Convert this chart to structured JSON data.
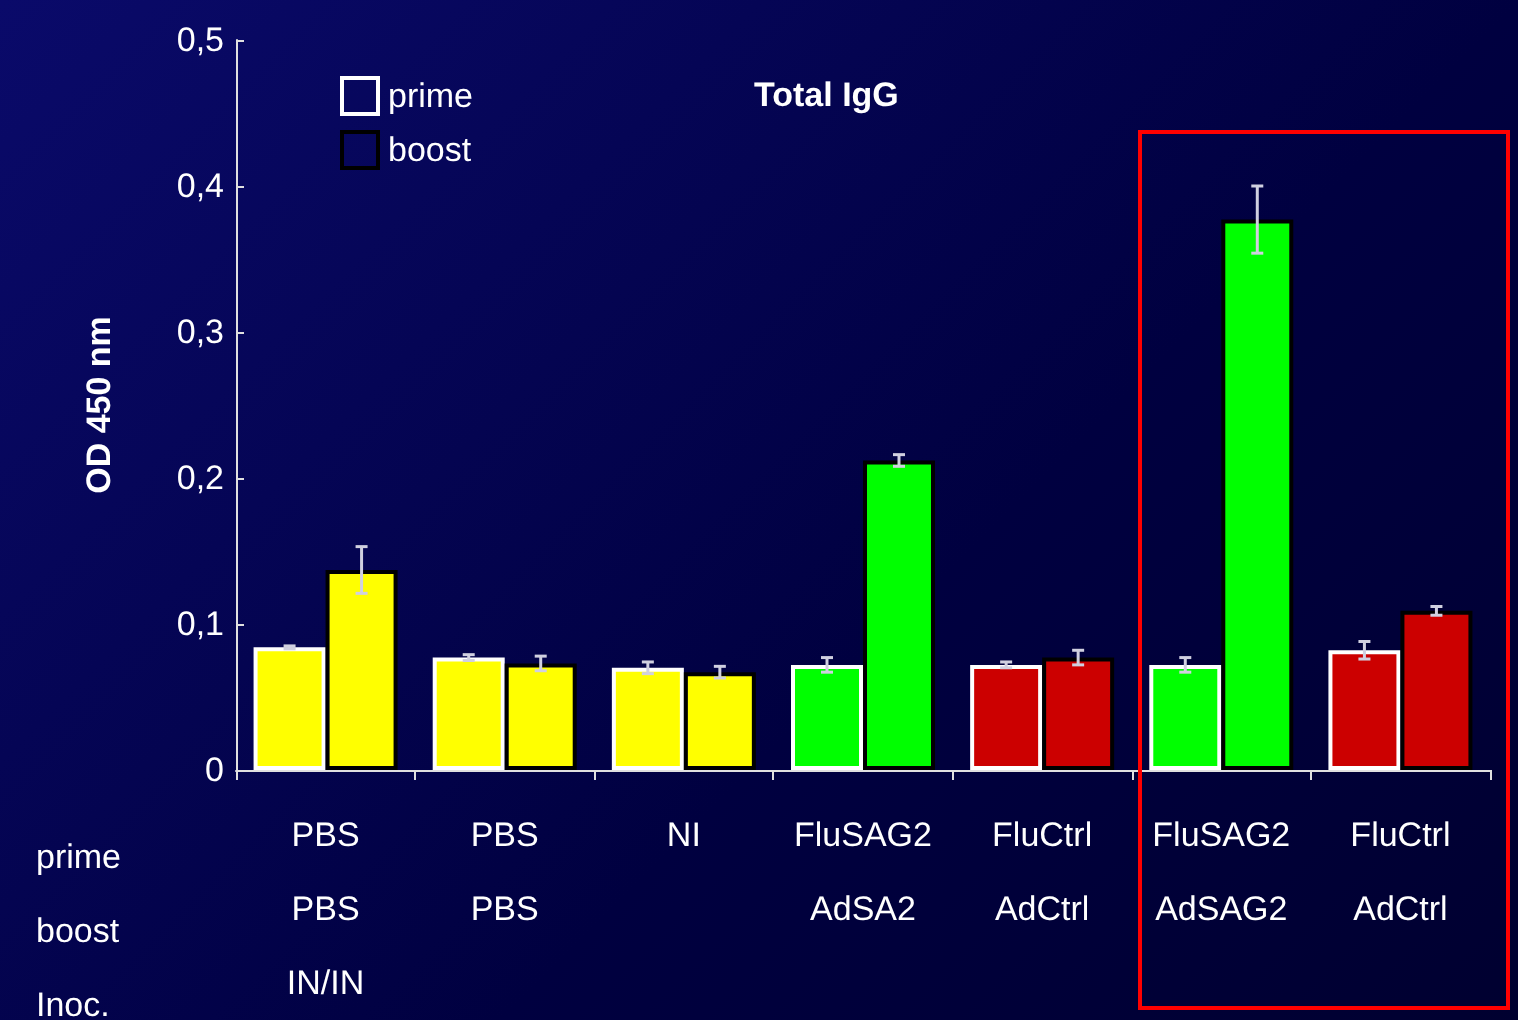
{
  "chart_data": {
    "type": "bar",
    "title": "Total IgG",
    "ylabel": "OD 450 nm",
    "categories": [
      "PBS\nPBS\nIN/IN",
      "PBS\nPBS\n",
      "NI\n\n",
      "FluSAG2\nAdSA2\n",
      "FluCtrl\nAdCtrl\n",
      "FluSAG2\nAdSAG2\n",
      "FluCtrl\nAdCtrl\n"
    ],
    "series": [
      {
        "name": "prime",
        "colors": [
          "#ffff00",
          "#ffff00",
          "#ffff00",
          "#00ff00",
          "#cc0000",
          "#00ff00",
          "#cc0000"
        ],
        "values": [
          0.084,
          0.077,
          0.07,
          0.072,
          0.072,
          0.072,
          0.082
        ],
        "errors": [
          0.001,
          0.002,
          0.004,
          0.005,
          0.002,
          0.005,
          0.006
        ]
      },
      {
        "name": "boost",
        "colors": [
          "#ffff00",
          "#ffff00",
          "#ffff00",
          "#00ff00",
          "#cc0000",
          "#00ff00",
          "#cc0000"
        ],
        "values": [
          0.137,
          0.073,
          0.067,
          0.212,
          0.077,
          0.377,
          0.109
        ],
        "errors": [
          0.016,
          0.005,
          0.004,
          0.004,
          0.005,
          0.023,
          0.003
        ]
      }
    ],
    "ylim": [
      0,
      0.5
    ],
    "yticks": [
      {
        "value": 0,
        "label": "0"
      },
      {
        "value": 0.1,
        "label": "0,1"
      },
      {
        "value": 0.2,
        "label": "0,2"
      },
      {
        "value": 0.3,
        "label": "0,3"
      },
      {
        "value": 0.4,
        "label": "0,4"
      },
      {
        "value": 0.5,
        "label": "0,5"
      }
    ],
    "annotations": [
      "prime",
      "boost",
      "Inoc."
    ],
    "legend": "top left",
    "grid": false
  }
}
